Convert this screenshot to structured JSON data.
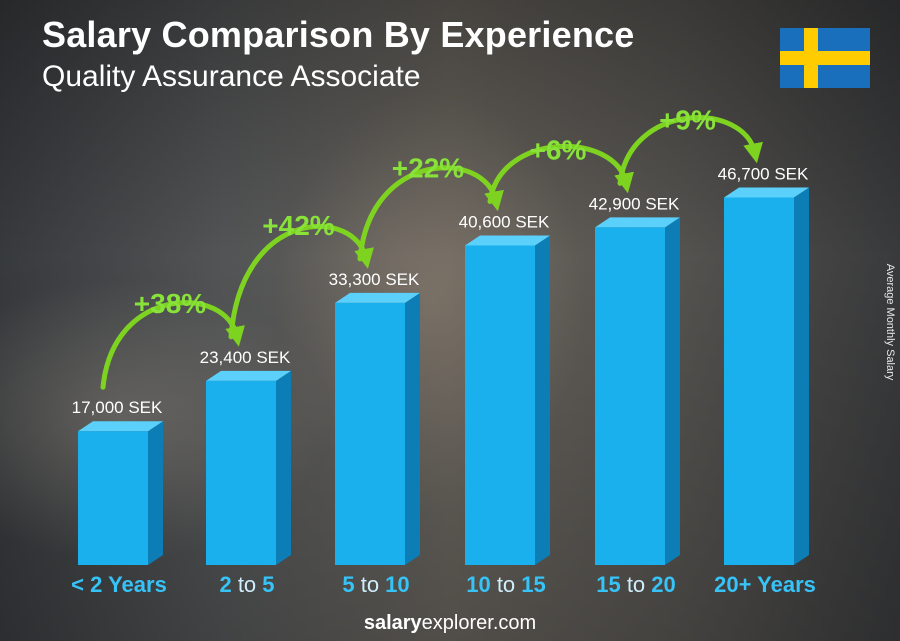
{
  "header": {
    "title": "Salary Comparison By Experience",
    "subtitle": "Quality Assurance Associate"
  },
  "flag": {
    "name": "sweden-flag",
    "field_color": "#1a6fbd",
    "cross_color": "#ffcc00"
  },
  "side_label": "Average Monthly Salary",
  "footer": {
    "brand_bold": "salary",
    "brand_rest": "explorer.com"
  },
  "colors": {
    "bar_front": "#1ab0ee",
    "bar_side": "#0c7db5",
    "bar_top": "#5ad0fa",
    "arrow": "#7ed321",
    "pct": "#88e23a",
    "category_accent": "#36c3f7",
    "category_word": "#cfeefc"
  },
  "chart_data": {
    "type": "bar",
    "title": "Salary Comparison By Experience",
    "subtitle": "Quality Assurance Associate",
    "ylabel": "Average Monthly Salary",
    "categories": [
      {
        "parts": [
          {
            "t": "< 2 Years",
            "w": false
          }
        ]
      },
      {
        "parts": [
          {
            "t": "2",
            "w": false
          },
          {
            "t": " to ",
            "w": true
          },
          {
            "t": "5",
            "w": false
          }
        ]
      },
      {
        "parts": [
          {
            "t": "5",
            "w": false
          },
          {
            "t": " to ",
            "w": true
          },
          {
            "t": "10",
            "w": false
          }
        ]
      },
      {
        "parts": [
          {
            "t": "10",
            "w": false
          },
          {
            "t": " to ",
            "w": true
          },
          {
            "t": "15",
            "w": false
          }
        ]
      },
      {
        "parts": [
          {
            "t": "15",
            "w": false
          },
          {
            "t": " to ",
            "w": true
          },
          {
            "t": "20",
            "w": false
          }
        ]
      },
      {
        "parts": [
          {
            "t": "20+ Years",
            "w": false
          }
        ]
      }
    ],
    "values": [
      17000,
      23400,
      33300,
      40600,
      42900,
      46700
    ],
    "value_labels": [
      "17,000 SEK",
      "23,400 SEK",
      "33,300 SEK",
      "40,600 SEK",
      "42,900 SEK",
      "46,700 SEK"
    ],
    "changes": [
      "+38%",
      "+42%",
      "+22%",
      "+6%",
      "+9%"
    ],
    "ylim": [
      0,
      50000
    ],
    "grid": false,
    "legend": "none"
  }
}
